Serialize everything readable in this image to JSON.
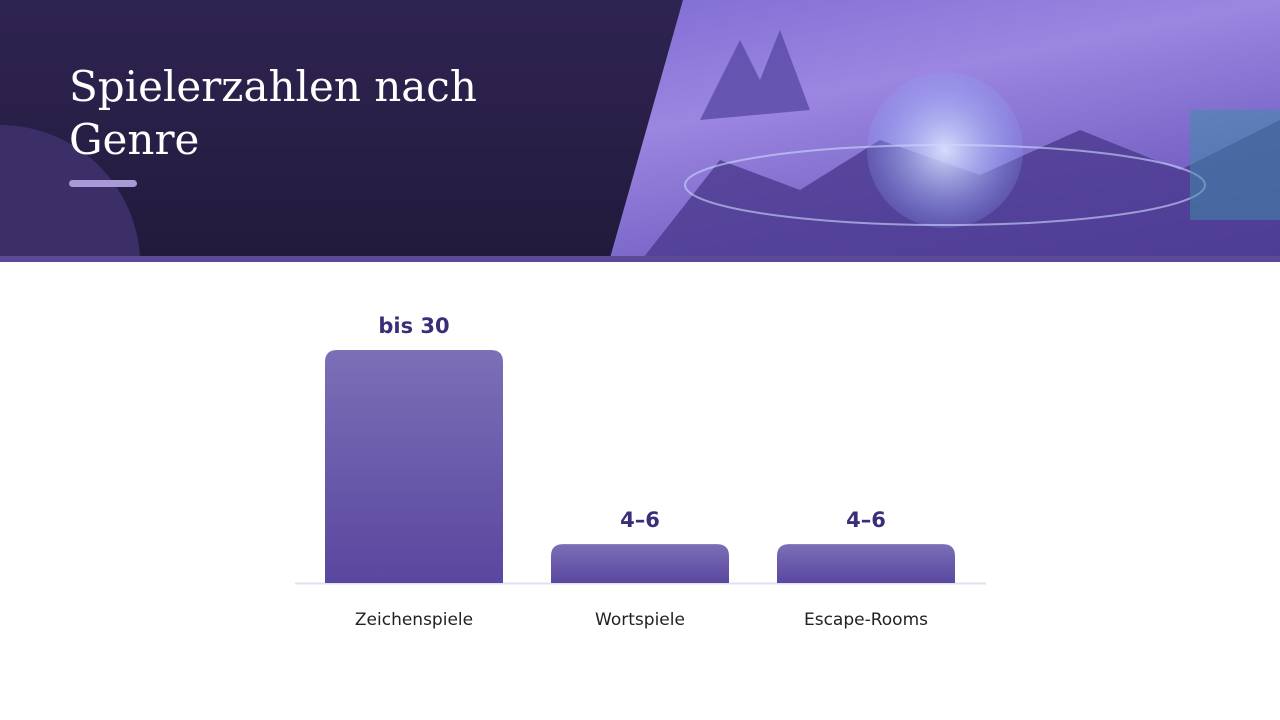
{
  "header": {
    "title": "Spielerzahlen nach Genre"
  },
  "chart_data": {
    "type": "bar",
    "categories": [
      "Zeichenspiele",
      "Wortspiele",
      "Escape-Rooms"
    ],
    "values": [
      30,
      5,
      5
    ],
    "value_labels": [
      "bis 30",
      "4–6",
      "4–6"
    ],
    "color": "#6a58ab"
  }
}
